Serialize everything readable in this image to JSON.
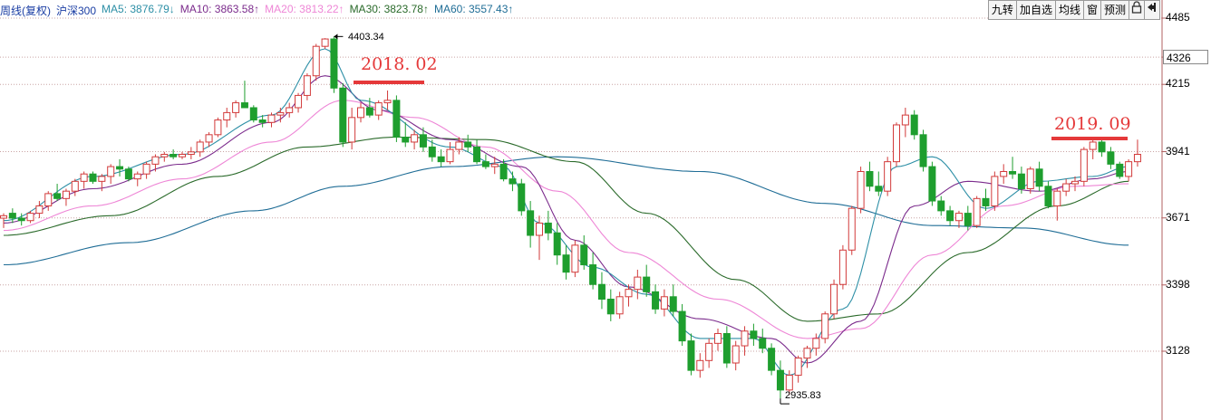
{
  "legend": {
    "title": "周线(复权)",
    "symbol": "沪深300",
    "ma5": "MA5: 3876.79↓",
    "ma10": "MA10: 3863.58↑",
    "ma20": "MA20: 3813.22↑",
    "ma30": "MA30: 3823.78↑",
    "ma60": "MA60: 3557.43↑"
  },
  "toolbar": {
    "jiuzhuan": "九转",
    "add_watch": "加自选",
    "avg_line": "均线",
    "window": "窗",
    "forecast": "预测",
    "lock_icon": "lock-icon",
    "exit_icon": "exit-icon"
  },
  "yaxis": {
    "ticks": [
      "4485",
      "4326",
      "4215",
      "3941",
      "3671",
      "3398",
      "3128"
    ],
    "highlight": "4326"
  },
  "annotations": {
    "peak1": "2018. 02",
    "peak2": "2019. 09",
    "max_label": "4403.34",
    "min_label": "2935.83"
  },
  "colors": {
    "up": "#d23a3a",
    "down": "#1e9e2e",
    "ma5": "#2d8fa6",
    "ma10": "#7b2b8c",
    "ma20": "#ee86d6",
    "ma30": "#2a6a2a",
    "ma60": "#1f6d96",
    "grid": "#c9a3a3",
    "annotation": "#e5393a"
  },
  "chart_data": {
    "type": "candlestick",
    "period": "weekly",
    "y_ticks": [
      3128,
      3398,
      3671,
      3941,
      4215,
      4326,
      4485
    ],
    "ylim": [
      2900,
      4500
    ],
    "candles": [
      [
        3670,
        3690,
        3630,
        3680
      ],
      [
        3690,
        3710,
        3650,
        3670
      ],
      [
        3670,
        3690,
        3640,
        3660
      ],
      [
        3660,
        3700,
        3650,
        3690
      ],
      [
        3690,
        3740,
        3670,
        3720
      ],
      [
        3720,
        3780,
        3700,
        3770
      ],
      [
        3770,
        3810,
        3740,
        3750
      ],
      [
        3750,
        3790,
        3720,
        3780
      ],
      [
        3780,
        3830,
        3760,
        3820
      ],
      [
        3820,
        3860,
        3790,
        3850
      ],
      [
        3850,
        3860,
        3810,
        3820
      ],
      [
        3820,
        3850,
        3780,
        3840
      ],
      [
        3840,
        3890,
        3810,
        3880
      ],
      [
        3880,
        3910,
        3840,
        3870
      ],
      [
        3870,
        3880,
        3820,
        3830
      ],
      [
        3830,
        3860,
        3800,
        3850
      ],
      [
        3850,
        3900,
        3830,
        3890
      ],
      [
        3890,
        3930,
        3860,
        3920
      ],
      [
        3920,
        3940,
        3900,
        3930
      ],
      [
        3930,
        3950,
        3910,
        3920
      ],
      [
        3920,
        3940,
        3910,
        3930
      ],
      [
        3930,
        3960,
        3910,
        3940
      ],
      [
        3940,
        3990,
        3920,
        3980
      ],
      [
        3980,
        4020,
        3960,
        4010
      ],
      [
        4010,
        4080,
        4000,
        4070
      ],
      [
        4070,
        4120,
        4040,
        4100
      ],
      [
        4100,
        4150,
        4080,
        4140
      ],
      [
        4140,
        4230,
        4120,
        4120
      ],
      [
        4120,
        4130,
        4060,
        4070
      ],
      [
        4070,
        4090,
        4040,
        4060
      ],
      [
        4060,
        4100,
        4040,
        4090
      ],
      [
        4090,
        4120,
        4060,
        4100
      ],
      [
        4100,
        4140,
        4080,
        4120
      ],
      [
        4120,
        4180,
        4100,
        4170
      ],
      [
        4170,
        4260,
        4150,
        4250
      ],
      [
        4250,
        4380,
        4230,
        4370
      ],
      [
        4370,
        4403.34,
        4360,
        4400
      ],
      [
        4400,
        4410,
        4180,
        4200
      ],
      [
        4200,
        4220,
        3960,
        3980
      ],
      [
        3980,
        4120,
        3950,
        4080
      ],
      [
        4080,
        4140,
        4060,
        4120
      ],
      [
        4120,
        4160,
        4080,
        4090
      ],
      [
        4090,
        4150,
        4070,
        4140
      ],
      [
        4140,
        4190,
        4110,
        4150
      ],
      [
        4150,
        4170,
        3980,
        4000
      ],
      [
        4000,
        4060,
        3960,
        3980
      ],
      [
        3980,
        4030,
        3950,
        4010
      ],
      [
        4010,
        4040,
        3940,
        3960
      ],
      [
        3960,
        3990,
        3900,
        3920
      ],
      [
        3920,
        3950,
        3880,
        3900
      ],
      [
        3900,
        3980,
        3890,
        3950
      ],
      [
        3950,
        4000,
        3930,
        3980
      ],
      [
        3980,
        4010,
        3940,
        3960
      ],
      [
        3960,
        3990,
        3890,
        3900
      ],
      [
        3900,
        3930,
        3870,
        3880
      ],
      [
        3880,
        3920,
        3850,
        3890
      ],
      [
        3890,
        3910,
        3820,
        3830
      ],
      [
        3830,
        3860,
        3780,
        3810
      ],
      [
        3810,
        3830,
        3680,
        3700
      ],
      [
        3700,
        3740,
        3550,
        3600
      ],
      [
        3600,
        3680,
        3500,
        3650
      ],
      [
        3650,
        3700,
        3580,
        3610
      ],
      [
        3610,
        3650,
        3480,
        3520
      ],
      [
        3520,
        3560,
        3420,
        3450
      ],
      [
        3450,
        3580,
        3430,
        3560
      ],
      [
        3560,
        3600,
        3460,
        3480
      ],
      [
        3480,
        3530,
        3380,
        3400
      ],
      [
        3400,
        3450,
        3300,
        3340
      ],
      [
        3340,
        3380,
        3250,
        3280
      ],
      [
        3280,
        3370,
        3260,
        3350
      ],
      [
        3350,
        3400,
        3310,
        3380
      ],
      [
        3380,
        3460,
        3340,
        3430
      ],
      [
        3430,
        3480,
        3350,
        3370
      ],
      [
        3370,
        3400,
        3280,
        3300
      ],
      [
        3300,
        3380,
        3270,
        3350
      ],
      [
        3350,
        3400,
        3270,
        3290
      ],
      [
        3290,
        3320,
        3150,
        3170
      ],
      [
        3170,
        3200,
        3030,
        3050
      ],
      [
        3050,
        3120,
        3020,
        3090
      ],
      [
        3090,
        3180,
        3060,
        3160
      ],
      [
        3160,
        3220,
        3130,
        3200
      ],
      [
        3200,
        3230,
        3060,
        3080
      ],
      [
        3080,
        3170,
        3050,
        3150
      ],
      [
        3150,
        3230,
        3110,
        3210
      ],
      [
        3210,
        3240,
        3150,
        3180
      ],
      [
        3180,
        3220,
        3120,
        3140
      ],
      [
        3140,
        3160,
        3030,
        3050
      ],
      [
        3050,
        3090,
        2935.83,
        2970
      ],
      [
        2970,
        3050,
        2950,
        3030
      ],
      [
        3030,
        3110,
        3000,
        3100
      ],
      [
        3100,
        3150,
        3060,
        3140
      ],
      [
        3140,
        3200,
        3110,
        3180
      ],
      [
        3180,
        3290,
        3160,
        3280
      ],
      [
        3280,
        3420,
        3260,
        3400
      ],
      [
        3400,
        3560,
        3380,
        3540
      ],
      [
        3540,
        3720,
        3520,
        3710
      ],
      [
        3710,
        3880,
        3690,
        3860
      ],
      [
        3860,
        3900,
        3780,
        3800
      ],
      [
        3800,
        3860,
        3760,
        3780
      ],
      [
        3780,
        3920,
        3760,
        3900
      ],
      [
        3900,
        4060,
        3880,
        4050
      ],
      [
        4050,
        4120,
        4000,
        4090
      ],
      [
        4090,
        4110,
        3990,
        4010
      ],
      [
        4010,
        4030,
        3860,
        3880
      ],
      [
        3880,
        3900,
        3720,
        3740
      ],
      [
        3740,
        3760,
        3680,
        3700
      ],
      [
        3700,
        3720,
        3640,
        3660
      ],
      [
        3660,
        3700,
        3630,
        3690
      ],
      [
        3690,
        3720,
        3620,
        3640
      ],
      [
        3640,
        3760,
        3630,
        3750
      ],
      [
        3750,
        3790,
        3700,
        3720
      ],
      [
        3720,
        3860,
        3700,
        3840
      ],
      [
        3840,
        3890,
        3810,
        3860
      ],
      [
        3860,
        3920,
        3830,
        3850
      ],
      [
        3850,
        3880,
        3770,
        3790
      ],
      [
        3790,
        3880,
        3770,
        3870
      ],
      [
        3870,
        3900,
        3780,
        3800
      ],
      [
        3800,
        3820,
        3710,
        3720
      ],
      [
        3720,
        3790,
        3660,
        3780
      ],
      [
        3780,
        3830,
        3760,
        3810
      ],
      [
        3810,
        3840,
        3780,
        3820
      ],
      [
        3820,
        3960,
        3800,
        3950
      ],
      [
        3950,
        3990,
        3910,
        3980
      ],
      [
        3980,
        3995,
        3920,
        3940
      ],
      [
        3940,
        3960,
        3870,
        3890
      ],
      [
        3890,
        3900,
        3830,
        3840
      ],
      [
        3840,
        3910,
        3820,
        3900
      ],
      [
        3900,
        3990,
        3880,
        3930
      ]
    ],
    "ma5": [
      [
        0,
        3660
      ],
      [
        10,
        3840
      ],
      [
        20,
        3930
      ],
      [
        30,
        4090
      ],
      [
        36,
        4360
      ],
      [
        40,
        4150
      ],
      [
        50,
        3960
      ],
      [
        56,
        3880
      ],
      [
        60,
        3650
      ],
      [
        66,
        3470
      ],
      [
        72,
        3360
      ],
      [
        78,
        3180
      ],
      [
        84,
        3180
      ],
      [
        88,
        3030
      ],
      [
        94,
        3300
      ],
      [
        100,
        3880
      ],
      [
        104,
        3920
      ],
      [
        110,
        3710
      ],
      [
        116,
        3820
      ],
      [
        122,
        3840
      ],
      [
        126,
        3880
      ]
    ],
    "ma10": [
      [
        0,
        3650
      ],
      [
        10,
        3790
      ],
      [
        20,
        3890
      ],
      [
        30,
        4060
      ],
      [
        36,
        4250
      ],
      [
        42,
        4110
      ],
      [
        50,
        3990
      ],
      [
        58,
        3880
      ],
      [
        64,
        3580
      ],
      [
        70,
        3390
      ],
      [
        78,
        3260
      ],
      [
        86,
        3180
      ],
      [
        90,
        3080
      ],
      [
        96,
        3250
      ],
      [
        102,
        3720
      ],
      [
        108,
        3820
      ],
      [
        116,
        3780
      ],
      [
        122,
        3830
      ],
      [
        126,
        3860
      ]
    ],
    "ma20": [
      [
        0,
        3620
      ],
      [
        10,
        3720
      ],
      [
        20,
        3830
      ],
      [
        30,
        3980
      ],
      [
        38,
        4150
      ],
      [
        46,
        4080
      ],
      [
        54,
        3960
      ],
      [
        62,
        3780
      ],
      [
        70,
        3530
      ],
      [
        80,
        3340
      ],
      [
        90,
        3180
      ],
      [
        96,
        3220
      ],
      [
        104,
        3520
      ],
      [
        112,
        3720
      ],
      [
        120,
        3800
      ],
      [
        126,
        3810
      ]
    ],
    "ma30": [
      [
        0,
        3600
      ],
      [
        12,
        3680
      ],
      [
        24,
        3840
      ],
      [
        34,
        3960
      ],
      [
        44,
        4000
      ],
      [
        54,
        3990
      ],
      [
        64,
        3900
      ],
      [
        72,
        3690
      ],
      [
        82,
        3420
      ],
      [
        90,
        3250
      ],
      [
        98,
        3280
      ],
      [
        108,
        3530
      ],
      [
        118,
        3720
      ],
      [
        126,
        3820
      ]
    ],
    "ma60": [
      [
        0,
        3480
      ],
      [
        14,
        3570
      ],
      [
        28,
        3700
      ],
      [
        38,
        3800
      ],
      [
        50,
        3880
      ],
      [
        62,
        3920
      ],
      [
        78,
        3860
      ],
      [
        92,
        3730
      ],
      [
        104,
        3640
      ],
      [
        114,
        3630
      ],
      [
        126,
        3560
      ]
    ]
  }
}
